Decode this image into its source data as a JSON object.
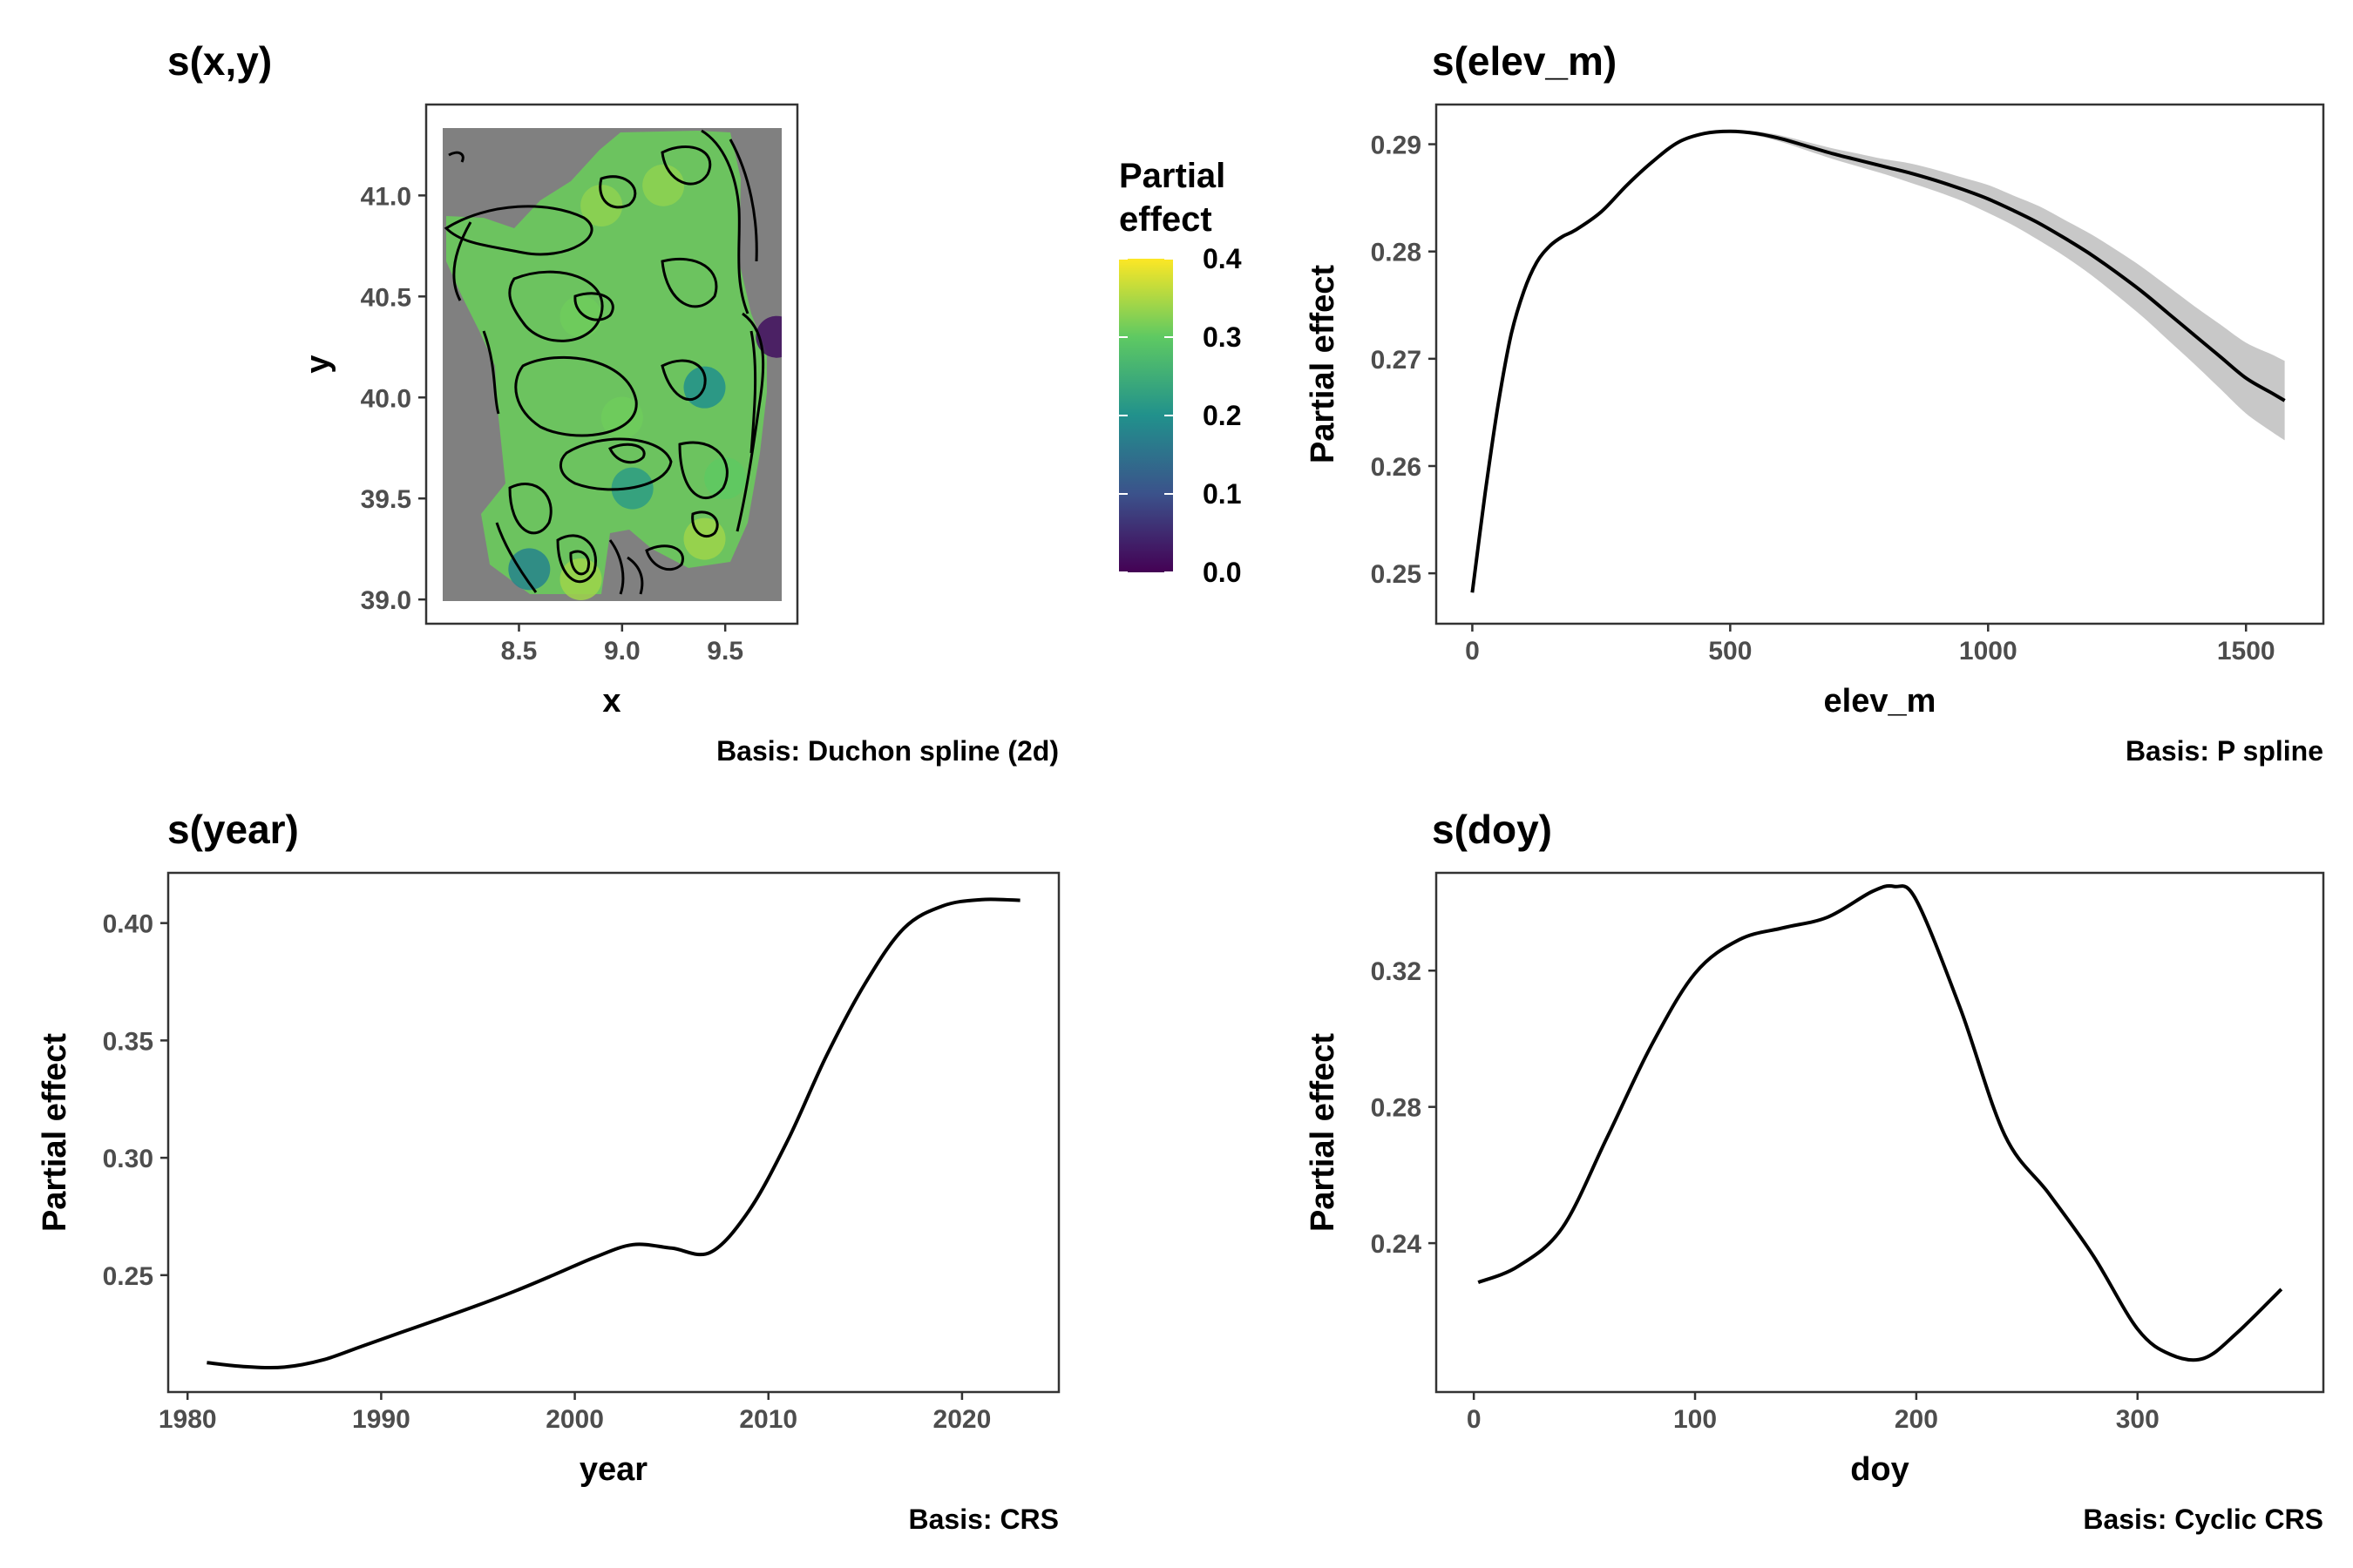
{
  "chart_data": [
    {
      "type": "heatmap",
      "title": "s(x,y)",
      "xlabel": "x",
      "ylabel": "y",
      "xlim": [
        8.05,
        9.85
      ],
      "ylim": [
        38.88,
        41.45
      ],
      "xticks": [
        8.5,
        9.0,
        9.5
      ],
      "xtick_labels": [
        "8.5",
        "9.0",
        "9.5"
      ],
      "yticks": [
        39.0,
        39.5,
        40.0,
        40.5,
        41.0
      ],
      "ytick_labels": [
        "39.0",
        "39.5",
        "40.0",
        "40.5",
        "41.0"
      ],
      "caption": "Basis: Duchon spline (2d)",
      "grid": false,
      "legend": {
        "title": "Partial effect",
        "position": "right",
        "range": [
          0.0,
          0.4
        ],
        "ticks": [
          0.0,
          0.1,
          0.2,
          0.3,
          0.4
        ],
        "tick_labels": [
          "0.0",
          "0.1",
          "0.2",
          "0.3",
          "0.4"
        ],
        "colors": [
          "#440154",
          "#3b528b",
          "#21918c",
          "#5ec962",
          "#fde725"
        ]
      },
      "na_color": "#808080",
      "surface_peaks": [
        {
          "x": 9.2,
          "y": 41.05,
          "value": 0.33
        },
        {
          "x": 8.9,
          "y": 40.95,
          "value": 0.33
        },
        {
          "x": 8.8,
          "y": 40.4,
          "value": 0.31
        },
        {
          "x": 8.8,
          "y": 39.1,
          "value": 0.34
        },
        {
          "x": 9.4,
          "y": 39.3,
          "value": 0.34
        },
        {
          "x": 9.0,
          "y": 39.9,
          "value": 0.31
        },
        {
          "x": 9.5,
          "y": 39.6,
          "value": 0.3
        }
      ],
      "surface_troughs": [
        {
          "x": 9.05,
          "y": 39.55,
          "value": 0.22
        },
        {
          "x": 9.4,
          "y": 40.05,
          "value": 0.2
        },
        {
          "x": 9.75,
          "y": 40.3,
          "value": 0.02
        },
        {
          "x": 8.55,
          "y": 39.15,
          "value": 0.18
        }
      ]
    },
    {
      "type": "line",
      "title": "s(elev_m)",
      "xlabel": "elev_m",
      "ylabel": "Partial effect",
      "xlim": [
        -70,
        1650
      ],
      "ylim": [
        0.2453,
        0.2937
      ],
      "xticks": [
        0,
        500,
        1000,
        1500
      ],
      "xtick_labels": [
        "0",
        "500",
        "1000",
        "1500"
      ],
      "yticks": [
        0.25,
        0.26,
        0.27,
        0.28,
        0.29
      ],
      "ytick_labels": [
        "0.25",
        "0.26",
        "0.27",
        "0.28",
        "0.29"
      ],
      "caption": "Basis: P spline",
      "grid": false,
      "x": [
        0,
        25,
        50,
        75,
        100,
        125,
        150,
        175,
        200,
        250,
        300,
        350,
        400,
        450,
        500,
        550,
        600,
        650,
        700,
        750,
        800,
        850,
        900,
        950,
        1000,
        1050,
        1100,
        1150,
        1200,
        1250,
        1300,
        1350,
        1400,
        1450,
        1500,
        1550,
        1575
      ],
      "y": [
        0.2482,
        0.2575,
        0.2657,
        0.2722,
        0.2763,
        0.279,
        0.2805,
        0.2814,
        0.282,
        0.2837,
        0.2862,
        0.2884,
        0.2902,
        0.291,
        0.2912,
        0.291,
        0.2905,
        0.2898,
        0.2891,
        0.2885,
        0.2879,
        0.2873,
        0.2866,
        0.2858,
        0.2849,
        0.2838,
        0.2826,
        0.2812,
        0.2797,
        0.278,
        0.2762,
        0.2742,
        0.2722,
        0.2702,
        0.2682,
        0.2668,
        0.2661
      ],
      "ci_lower": [
        0.2482,
        0.2575,
        0.2657,
        0.2722,
        0.2763,
        0.279,
        0.2805,
        0.2814,
        0.282,
        0.2837,
        0.2862,
        0.2884,
        0.2902,
        0.291,
        0.2911,
        0.2908,
        0.2902,
        0.2894,
        0.2886,
        0.2879,
        0.2872,
        0.2864,
        0.2856,
        0.2847,
        0.2836,
        0.2824,
        0.281,
        0.2795,
        0.2778,
        0.2759,
        0.2739,
        0.2717,
        0.2695,
        0.2672,
        0.2649,
        0.2632,
        0.2624
      ],
      "ci_upper": [
        0.2482,
        0.2575,
        0.2657,
        0.2722,
        0.2763,
        0.279,
        0.2805,
        0.2814,
        0.282,
        0.2837,
        0.2862,
        0.2884,
        0.2902,
        0.291,
        0.2913,
        0.2912,
        0.2908,
        0.2902,
        0.2896,
        0.2891,
        0.2886,
        0.2882,
        0.2876,
        0.2869,
        0.2862,
        0.2852,
        0.2842,
        0.2829,
        0.2816,
        0.2801,
        0.2785,
        0.2767,
        0.2749,
        0.2732,
        0.2715,
        0.2704,
        0.2698
      ]
    },
    {
      "type": "line",
      "title": "s(year)",
      "xlabel": "year",
      "ylabel": "Partial effect",
      "xlim": [
        1979,
        2025
      ],
      "ylim": [
        0.2002,
        0.4214
      ],
      "xticks": [
        1980,
        1990,
        2000,
        2010,
        2020
      ],
      "xtick_labels": [
        "1980",
        "1990",
        "2000",
        "2010",
        "2020"
      ],
      "yticks": [
        0.25,
        0.3,
        0.35,
        0.4
      ],
      "ytick_labels": [
        "0.25",
        "0.30",
        "0.35",
        "0.40"
      ],
      "caption": "Basis: CRS",
      "grid": false,
      "x": [
        1981,
        1983,
        1985,
        1987,
        1989,
        1991,
        1993,
        1995,
        1997,
        1999,
        2001,
        2003,
        2005,
        2007,
        2009,
        2011,
        2013,
        2015,
        2017,
        2019,
        2021,
        2023
      ],
      "y": [
        0.2127,
        0.211,
        0.2108,
        0.2139,
        0.2197,
        0.2255,
        0.2313,
        0.2372,
        0.2435,
        0.2504,
        0.2575,
        0.263,
        0.2615,
        0.2597,
        0.2775,
        0.3075,
        0.3435,
        0.3743,
        0.3978,
        0.4073,
        0.41,
        0.4097
      ]
    },
    {
      "type": "line",
      "title": "s(doy)",
      "xlabel": "doy",
      "ylabel": "Partial effect",
      "xlim": [
        -17,
        384
      ],
      "ylim": [
        0.1963,
        0.3487
      ],
      "xticks": [
        0,
        100,
        200,
        300
      ],
      "xtick_labels": [
        "0",
        "100",
        "200",
        "300"
      ],
      "yticks": [
        0.24,
        0.28,
        0.32
      ],
      "ytick_labels": [
        "0.24",
        "0.28",
        "0.32"
      ],
      "caption": "Basis: Cyclic CRS",
      "grid": false,
      "x": [
        2,
        20,
        40,
        60,
        80,
        100,
        120,
        140,
        160,
        180,
        190,
        200,
        220,
        240,
        260,
        280,
        300,
        315,
        330,
        345,
        365
      ],
      "y": [
        0.2285,
        0.2332,
        0.2445,
        0.2707,
        0.2977,
        0.3192,
        0.3291,
        0.3326,
        0.3357,
        0.3432,
        0.3447,
        0.3407,
        0.3087,
        0.2717,
        0.2545,
        0.2363,
        0.2148,
        0.2073,
        0.2062,
        0.2137,
        0.2265
      ]
    }
  ]
}
